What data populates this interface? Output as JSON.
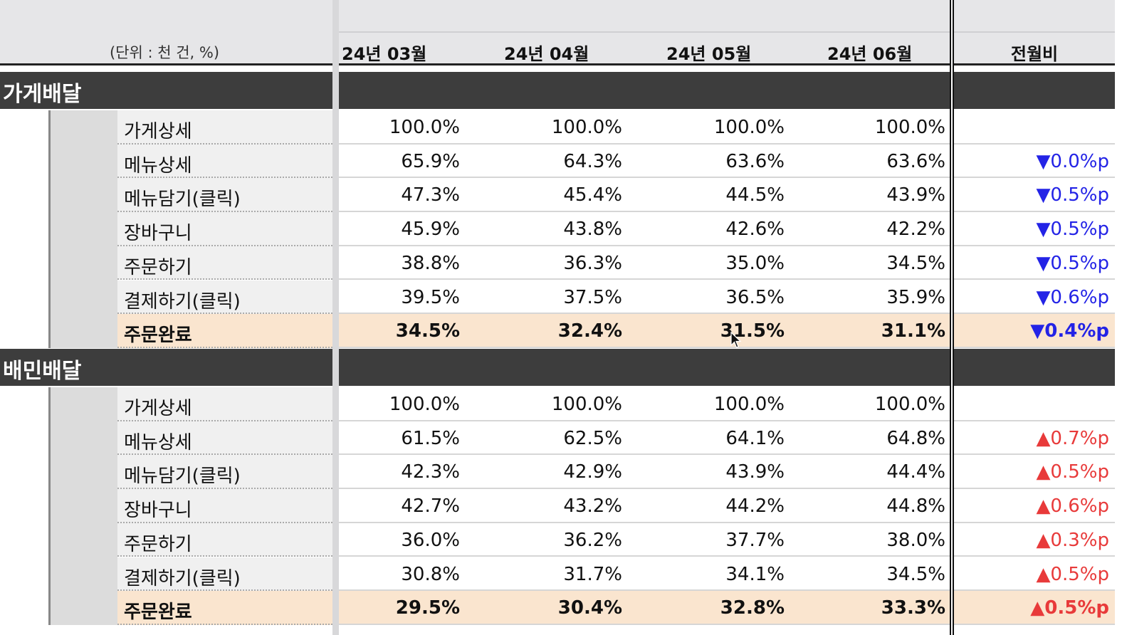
{
  "header": {
    "unit_label": "(단위 : 천 건, %)",
    "months": [
      "24년 03월",
      "24년 04월",
      "24년 05월",
      "24년 06월"
    ],
    "mom_label": "전월비"
  },
  "colors": {
    "down": "#2323e6",
    "up": "#e83a3a",
    "highlight": "#fae5cf",
    "section_bar": "#3d3d3d"
  },
  "sections": [
    {
      "title": "가게배달",
      "rows": [
        {
          "label": "가게상세",
          "values": [
            "100.0%",
            "100.0%",
            "100.0%",
            "100.0%"
          ],
          "mom": ""
        },
        {
          "label": "메뉴상세",
          "values": [
            "65.9%",
            "64.3%",
            "63.6%",
            "63.6%"
          ],
          "mom": "▼0.0%p"
        },
        {
          "label": "메뉴담기(클릭)",
          "values": [
            "47.3%",
            "45.4%",
            "44.5%",
            "43.9%"
          ],
          "mom": "▼0.5%p"
        },
        {
          "label": "장바구니",
          "values": [
            "45.9%",
            "43.8%",
            "42.6%",
            "42.2%"
          ],
          "mom": "▼0.5%p"
        },
        {
          "label": "주문하기",
          "values": [
            "38.8%",
            "36.3%",
            "35.0%",
            "34.5%"
          ],
          "mom": "▼0.5%p"
        },
        {
          "label": "결제하기(클릭)",
          "values": [
            "39.5%",
            "37.5%",
            "36.5%",
            "35.9%"
          ],
          "mom": "▼0.6%p"
        },
        {
          "label": "주문완료",
          "values": [
            "34.5%",
            "32.4%",
            "31.5%",
            "31.1%"
          ],
          "mom": "▼0.4%p"
        }
      ]
    },
    {
      "title": "배민배달",
      "rows": [
        {
          "label": "가게상세",
          "values": [
            "100.0%",
            "100.0%",
            "100.0%",
            "100.0%"
          ],
          "mom": ""
        },
        {
          "label": "메뉴상세",
          "values": [
            "61.5%",
            "62.5%",
            "64.1%",
            "64.8%"
          ],
          "mom": "▲0.7%p"
        },
        {
          "label": "메뉴담기(클릭)",
          "values": [
            "42.3%",
            "42.9%",
            "43.9%",
            "44.4%"
          ],
          "mom": "▲0.5%p"
        },
        {
          "label": "장바구니",
          "values": [
            "42.7%",
            "43.2%",
            "44.2%",
            "44.8%"
          ],
          "mom": "▲0.6%p"
        },
        {
          "label": "주문하기",
          "values": [
            "36.0%",
            "36.2%",
            "37.7%",
            "38.0%"
          ],
          "mom": "▲0.3%p"
        },
        {
          "label": "결제하기(클릭)",
          "values": [
            "30.8%",
            "31.7%",
            "34.1%",
            "34.5%"
          ],
          "mom": "▲0.5%p"
        },
        {
          "label": "주문완료",
          "values": [
            "29.5%",
            "30.4%",
            "32.8%",
            "33.3%"
          ],
          "mom": "▲0.5%p"
        }
      ]
    }
  ]
}
